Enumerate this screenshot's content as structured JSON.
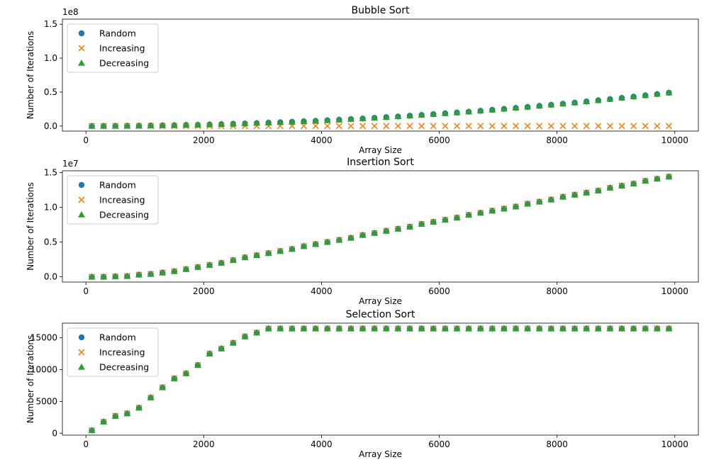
{
  "figure": {
    "legend_labels": [
      "Random",
      "Increasing",
      "Decreasing"
    ],
    "colors": {
      "Random": "#1f77b4",
      "Increasing": "#ff7f0e",
      "Decreasing": "#2ca02c"
    }
  },
  "chart_data": [
    {
      "type": "scatter",
      "title": "Bubble Sort",
      "xlabel": "Array Size",
      "ylabel": "Number of Iterations",
      "xlim": [
        -400,
        10400
      ],
      "ylim": [
        -7500000,
        157500000
      ],
      "xticks": [
        0,
        2000,
        4000,
        6000,
        8000,
        10000
      ],
      "xtick_labels": [
        "0",
        "2000",
        "4000",
        "6000",
        "8000",
        "10000"
      ],
      "yticks": [
        0,
        50000000,
        100000000,
        150000000
      ],
      "ytick_labels": [
        "0.0",
        "0.5",
        "1.0",
        "1.5"
      ],
      "offset_text": "1e8",
      "legend": "top-left",
      "grid": false,
      "x": [
        100,
        300,
        500,
        700,
        900,
        1100,
        1300,
        1500,
        1700,
        1900,
        2100,
        2300,
        2500,
        2700,
        2900,
        3100,
        3300,
        3500,
        3700,
        3900,
        4100,
        4300,
        4500,
        4700,
        4900,
        5100,
        5300,
        5500,
        5700,
        5900,
        6100,
        6300,
        6500,
        6700,
        6900,
        7100,
        7300,
        7500,
        7700,
        7900,
        8100,
        8300,
        8500,
        8700,
        8900,
        9100,
        9300,
        9500,
        9700,
        9900
      ],
      "series": [
        {
          "name": "Random",
          "marker": "circle",
          "values": [
            4000,
            50000,
            150000,
            250000,
            400000,
            600000,
            900000,
            1100000,
            1500000,
            1700000,
            2200000,
            2700000,
            3200000,
            3700000,
            4200000,
            4800000,
            5500000,
            6100000,
            6900000,
            7600000,
            8400000,
            9300000,
            10100000,
            11000000,
            12000000,
            13000000,
            14000000,
            15200000,
            16200000,
            17400000,
            18600000,
            19800000,
            21000000,
            22400000,
            23800000,
            25200000,
            26600000,
            28000000,
            29600000,
            31200000,
            32800000,
            34400000,
            36100000,
            37800000,
            39600000,
            41400000,
            43200000,
            45100000,
            47000000,
            49000000
          ]
        },
        {
          "name": "Increasing",
          "marker": "x",
          "values": [
            0,
            0,
            0,
            0,
            0,
            0,
            0,
            0,
            0,
            0,
            0,
            0,
            0,
            0,
            0,
            0,
            0,
            0,
            0,
            0,
            0,
            0,
            0,
            0,
            0,
            0,
            0,
            0,
            0,
            0,
            0,
            0,
            0,
            0,
            0,
            0,
            0,
            0,
            0,
            0,
            0,
            0,
            0,
            0,
            0,
            0,
            0,
            0,
            0,
            0
          ]
        },
        {
          "name": "Decreasing",
          "marker": "triangle",
          "values": [
            5000,
            45000,
            125000,
            245000,
            405000,
            605000,
            845000,
            1125000,
            1445000,
            1805000,
            2205000,
            2645000,
            3125000,
            3645000,
            4205000,
            4805000,
            5445000,
            6125000,
            6845000,
            7605000,
            8405000,
            9245000,
            10125000,
            11045000,
            12005000,
            13005000,
            14045000,
            15125000,
            16245000,
            17405000,
            18605000,
            19845000,
            21125000,
            22445000,
            23805000,
            25205000,
            26645000,
            28125000,
            29645000,
            31205000,
            32805000,
            34445000,
            36125000,
            37845000,
            39605000,
            41405000,
            43245000,
            45125000,
            47045000,
            49005000
          ]
        }
      ]
    },
    {
      "type": "scatter",
      "title": "Insertion Sort",
      "xlabel": "Array Size",
      "ylabel": "Number of Iterations",
      "xlim": [
        -400,
        10400
      ],
      "ylim": [
        -750000,
        15250000
      ],
      "xticks": [
        0,
        2000,
        4000,
        6000,
        8000,
        10000
      ],
      "xtick_labels": [
        "0",
        "2000",
        "4000",
        "6000",
        "8000",
        "10000"
      ],
      "yticks": [
        0,
        5000000,
        10000000,
        15000000
      ],
      "ytick_labels": [
        "0.0",
        "0.5",
        "1.0",
        "1.5"
      ],
      "offset_text": "1e7",
      "legend": "top-left",
      "grid": false,
      "x": [
        100,
        300,
        500,
        700,
        900,
        1100,
        1300,
        1500,
        1700,
        1900,
        2100,
        2300,
        2500,
        2700,
        2900,
        3100,
        3300,
        3500,
        3700,
        3900,
        4100,
        4300,
        4500,
        4700,
        4900,
        5100,
        5300,
        5500,
        5700,
        5900,
        6100,
        6300,
        6500,
        6700,
        6900,
        7100,
        7300,
        7500,
        7700,
        7900,
        8100,
        8300,
        8500,
        8700,
        8900,
        9100,
        9300,
        9500,
        9700,
        9900
      ],
      "series": [
        {
          "name": "Random",
          "marker": "circle",
          "values": [
            0,
            0,
            60000,
            100000,
            300000,
            400000,
            600000,
            800000,
            1100000,
            1400000,
            1700000,
            2000000,
            2400000,
            2800000,
            3100000,
            3400000,
            3700000,
            4000000,
            4400000,
            4700000,
            5000000,
            5300000,
            5600000,
            6000000,
            6300000,
            6600000,
            6900000,
            7200000,
            7600000,
            7900000,
            8200000,
            8500000,
            8900000,
            9200000,
            9500000,
            9800000,
            10100000,
            10500000,
            10800000,
            11100000,
            11500000,
            11800000,
            12100000,
            12400000,
            12800000,
            13100000,
            13400000,
            13800000,
            14100000,
            14400000
          ]
        },
        {
          "name": "Increasing",
          "marker": "x",
          "values": [
            0,
            0,
            60000,
            100000,
            300000,
            400000,
            600000,
            800000,
            1100000,
            1400000,
            1700000,
            2000000,
            2400000,
            2800000,
            3100000,
            3400000,
            3700000,
            4000000,
            4400000,
            4700000,
            5000000,
            5300000,
            5600000,
            6000000,
            6300000,
            6600000,
            6900000,
            7200000,
            7600000,
            7900000,
            8200000,
            8500000,
            8900000,
            9200000,
            9500000,
            9800000,
            10100000,
            10500000,
            10800000,
            11100000,
            11500000,
            11800000,
            12100000,
            12400000,
            12800000,
            13100000,
            13400000,
            13800000,
            14100000,
            14400000
          ]
        },
        {
          "name": "Decreasing",
          "marker": "triangle",
          "values": [
            0,
            0,
            60000,
            100000,
            300000,
            400000,
            600000,
            800000,
            1100000,
            1400000,
            1700000,
            2000000,
            2400000,
            2800000,
            3100000,
            3400000,
            3700000,
            4000000,
            4400000,
            4700000,
            5000000,
            5300000,
            5600000,
            6000000,
            6300000,
            6600000,
            6900000,
            7200000,
            7600000,
            7900000,
            8200000,
            8500000,
            8900000,
            9200000,
            9500000,
            9800000,
            10100000,
            10500000,
            10800000,
            11100000,
            11500000,
            11800000,
            12100000,
            12400000,
            12800000,
            13100000,
            13400000,
            13800000,
            14100000,
            14400000
          ]
        }
      ]
    },
    {
      "type": "scatter",
      "title": "Selection Sort",
      "xlabel": "Array Size",
      "ylabel": "Number of Iterations",
      "xlim": [
        -400,
        10400
      ],
      "ylim": [
        -300,
        17300
      ],
      "xticks": [
        0,
        2000,
        4000,
        6000,
        8000,
        10000
      ],
      "xtick_labels": [
        "0",
        "2000",
        "4000",
        "6000",
        "8000",
        "10000"
      ],
      "yticks": [
        0,
        5000,
        10000,
        15000
      ],
      "ytick_labels": [
        "0",
        "5000",
        "10000",
        "15000"
      ],
      "offset_text": "",
      "legend": "top-left",
      "grid": false,
      "x": [
        100,
        300,
        500,
        700,
        900,
        1100,
        1300,
        1500,
        1700,
        1900,
        2100,
        2300,
        2500,
        2700,
        2900,
        3100,
        3300,
        3500,
        3700,
        3900,
        4100,
        4300,
        4500,
        4700,
        4900,
        5100,
        5300,
        5500,
        5700,
        5900,
        6100,
        6300,
        6500,
        6700,
        6900,
        7100,
        7300,
        7500,
        7700,
        7900,
        8100,
        8300,
        8500,
        8700,
        8900,
        9100,
        9300,
        9500,
        9700,
        9900
      ],
      "series": [
        {
          "name": "Random",
          "marker": "circle",
          "values": [
            450,
            1800,
            2700,
            3100,
            4000,
            5600,
            7200,
            8600,
            9400,
            10700,
            12500,
            13300,
            14200,
            15200,
            15800,
            16450,
            16450,
            16450,
            16450,
            16450,
            16450,
            16450,
            16450,
            16450,
            16450,
            16450,
            16450,
            16450,
            16450,
            16450,
            16450,
            16450,
            16450,
            16450,
            16450,
            16450,
            16450,
            16450,
            16450,
            16450,
            16450,
            16450,
            16450,
            16450,
            16450,
            16450,
            16450,
            16450,
            16450,
            16450
          ]
        },
        {
          "name": "Increasing",
          "marker": "x",
          "values": [
            450,
            1800,
            2700,
            3100,
            4000,
            5600,
            7200,
            8600,
            9400,
            10700,
            12500,
            13300,
            14200,
            15200,
            15800,
            16450,
            16450,
            16450,
            16450,
            16450,
            16450,
            16450,
            16450,
            16450,
            16450,
            16450,
            16450,
            16450,
            16450,
            16450,
            16450,
            16450,
            16450,
            16450,
            16450,
            16450,
            16450,
            16450,
            16450,
            16450,
            16450,
            16450,
            16450,
            16450,
            16450,
            16450,
            16450,
            16450,
            16450,
            16450
          ]
        },
        {
          "name": "Decreasing",
          "marker": "triangle",
          "values": [
            450,
            1800,
            2700,
            3100,
            4000,
            5600,
            7200,
            8600,
            9400,
            10700,
            12500,
            13300,
            14200,
            15200,
            15800,
            16450,
            16450,
            16450,
            16450,
            16450,
            16450,
            16450,
            16450,
            16450,
            16450,
            16450,
            16450,
            16450,
            16450,
            16450,
            16450,
            16450,
            16450,
            16450,
            16450,
            16450,
            16450,
            16450,
            16450,
            16450,
            16450,
            16450,
            16450,
            16450,
            16450,
            16450,
            16450,
            16450,
            16450,
            16450
          ]
        }
      ]
    }
  ]
}
